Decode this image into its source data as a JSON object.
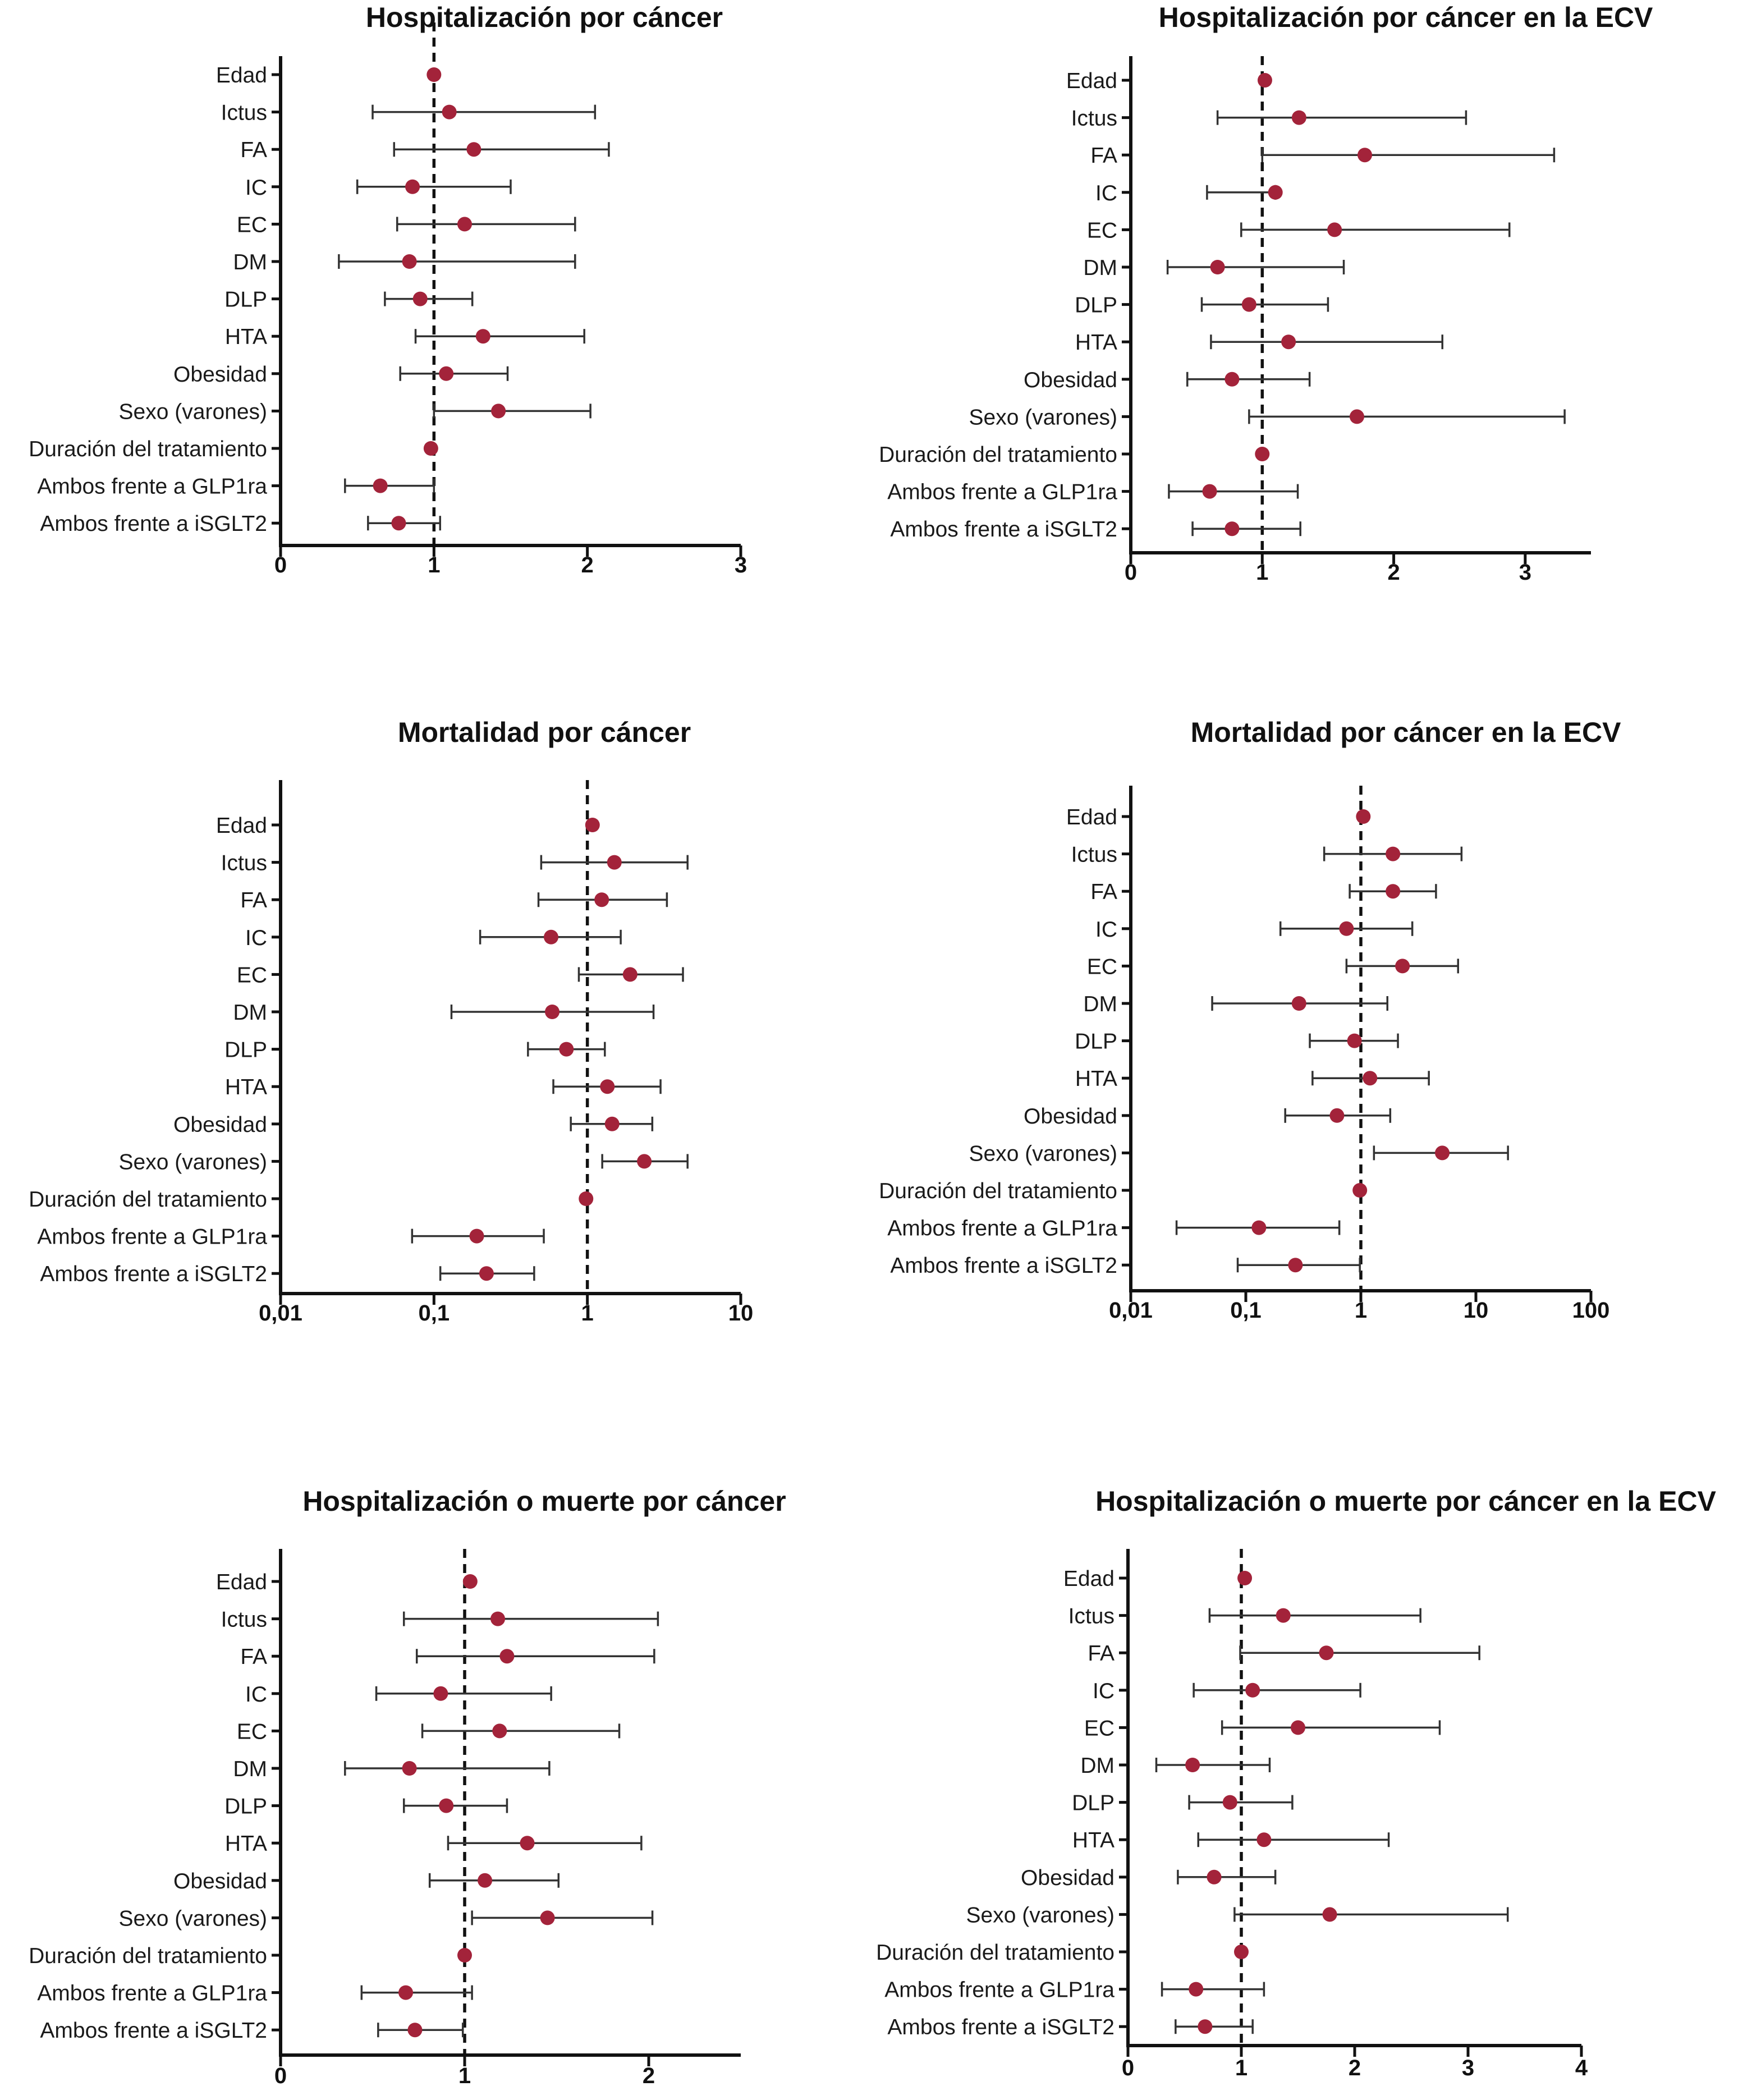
{
  "colors": {
    "point": "#a3233a",
    "axis": "#111111",
    "ci": "#333333"
  },
  "row_labels": [
    "Edad",
    "Ictus",
    "FA",
    "IC",
    "EC",
    "DM",
    "DLP",
    "HTA",
    "Obesidad",
    "Sexo (varones)",
    "Duración del tratamiento",
    "Ambos frente a GLP1ra",
    "Ambos frente a iSGLT2"
  ],
  "chart_data": [
    {
      "type": "forest",
      "title": "Hospitalización por cáncer",
      "scale": "linear",
      "xlim": [
        0,
        3
      ],
      "ticks": [
        0,
        1,
        2,
        3
      ],
      "tick_labels": [
        "0",
        "1",
        "2",
        "3"
      ],
      "reference": 1,
      "rows": [
        {
          "label": "Edad",
          "est": 1.0,
          "lo": 1.0,
          "hi": 1.0
        },
        {
          "label": "Ictus",
          "est": 1.1,
          "lo": 0.6,
          "hi": 2.05
        },
        {
          "label": "FA",
          "est": 1.26,
          "lo": 0.74,
          "hi": 2.14
        },
        {
          "label": "IC",
          "est": 0.86,
          "lo": 0.5,
          "hi": 1.5
        },
        {
          "label": "EC",
          "est": 1.2,
          "lo": 0.76,
          "hi": 1.92
        },
        {
          "label": "DM",
          "est": 0.84,
          "lo": 0.38,
          "hi": 1.92
        },
        {
          "label": "DLP",
          "est": 0.91,
          "lo": 0.68,
          "hi": 1.25
        },
        {
          "label": "HTA",
          "est": 1.32,
          "lo": 0.88,
          "hi": 1.98
        },
        {
          "label": "Obesidad",
          "est": 1.08,
          "lo": 0.78,
          "hi": 1.48
        },
        {
          "label": "Sexo (varones)",
          "est": 1.42,
          "lo": 1.0,
          "hi": 2.02
        },
        {
          "label": "Duración del tratamiento",
          "est": 0.98,
          "lo": 0.98,
          "hi": 0.98
        },
        {
          "label": "Ambos frente a GLP1ra",
          "est": 0.65,
          "lo": 0.42,
          "hi": 1.0
        },
        {
          "label": "Ambos frente a iSGLT2",
          "est": 0.77,
          "lo": 0.57,
          "hi": 1.04
        }
      ]
    },
    {
      "type": "forest",
      "title": "Hospitalización por cáncer en la ECV",
      "scale": "linear",
      "xlim": [
        0,
        3.5
      ],
      "ticks": [
        0,
        1,
        2,
        3
      ],
      "tick_labels": [
        "0",
        "1",
        "2",
        "3"
      ],
      "reference": 1,
      "rows": [
        {
          "label": "Edad",
          "est": 1.02,
          "lo": 1.02,
          "hi": 1.02
        },
        {
          "label": "Ictus",
          "est": 1.28,
          "lo": 0.66,
          "hi": 2.55
        },
        {
          "label": "FA",
          "est": 1.78,
          "lo": 1.0,
          "hi": 3.22
        },
        {
          "label": "IC",
          "est": 1.1,
          "lo": 0.58,
          "hi": 1.1
        },
        {
          "label": "EC",
          "est": 1.55,
          "lo": 0.84,
          "hi": 2.88
        },
        {
          "label": "DM",
          "est": 0.66,
          "lo": 0.28,
          "hi": 1.62
        },
        {
          "label": "DLP",
          "est": 0.9,
          "lo": 0.54,
          "hi": 1.5
        },
        {
          "label": "HTA",
          "est": 1.2,
          "lo": 0.61,
          "hi": 2.37
        },
        {
          "label": "Obesidad",
          "est": 0.77,
          "lo": 0.43,
          "hi": 1.36
        },
        {
          "label": "Sexo (varones)",
          "est": 1.72,
          "lo": 0.9,
          "hi": 3.3
        },
        {
          "label": "Duración del tratamiento",
          "est": 1.0,
          "lo": 1.0,
          "hi": 1.0
        },
        {
          "label": "Ambos frente a GLP1ra",
          "est": 0.6,
          "lo": 0.29,
          "hi": 1.27
        },
        {
          "label": "Ambos frente a iSGLT2",
          "est": 0.77,
          "lo": 0.47,
          "hi": 1.29
        }
      ]
    },
    {
      "type": "forest",
      "title": "Mortalidad por cáncer",
      "scale": "log",
      "xlim": [
        0.01,
        10
      ],
      "ticks": [
        0.01,
        0.1,
        1,
        10
      ],
      "tick_labels": [
        "0,01",
        "0,1",
        "1",
        "10"
      ],
      "reference": 1,
      "rows": [
        {
          "label": "Edad",
          "est": 1.08,
          "lo": 1.08,
          "hi": 1.08
        },
        {
          "label": "Ictus",
          "est": 1.5,
          "lo": 0.5,
          "hi": 4.5
        },
        {
          "label": "FA",
          "est": 1.24,
          "lo": 0.48,
          "hi": 3.3
        },
        {
          "label": "IC",
          "est": 0.58,
          "lo": 0.2,
          "hi": 1.65
        },
        {
          "label": "EC",
          "est": 1.9,
          "lo": 0.88,
          "hi": 4.2
        },
        {
          "label": "DM",
          "est": 0.59,
          "lo": 0.13,
          "hi": 2.7
        },
        {
          "label": "DLP",
          "est": 0.73,
          "lo": 0.41,
          "hi": 1.3
        },
        {
          "label": "HTA",
          "est": 1.35,
          "lo": 0.6,
          "hi": 3.0
        },
        {
          "label": "Obesidad",
          "est": 1.45,
          "lo": 0.78,
          "hi": 2.65
        },
        {
          "label": "Sexo (varones)",
          "est": 2.35,
          "lo": 1.25,
          "hi": 4.5
        },
        {
          "label": "Duración del tratamiento",
          "est": 0.98,
          "lo": 0.98,
          "hi": 0.98
        },
        {
          "label": "Ambos frente a GLP1ra",
          "est": 0.19,
          "lo": 0.072,
          "hi": 0.52
        },
        {
          "label": "Ambos frente a iSGLT2",
          "est": 0.22,
          "lo": 0.11,
          "hi": 0.45
        }
      ]
    },
    {
      "type": "forest",
      "title": "Mortalidad por cáncer en la ECV",
      "scale": "log",
      "xlim": [
        0.01,
        100
      ],
      "ticks": [
        0.01,
        0.1,
        1,
        10,
        100
      ],
      "tick_labels": [
        "0,01",
        "0,1",
        "1",
        "10",
        "100"
      ],
      "reference": 1,
      "rows": [
        {
          "label": "Edad",
          "est": 1.05,
          "lo": 1.05,
          "hi": 1.05
        },
        {
          "label": "Ictus",
          "est": 1.9,
          "lo": 0.48,
          "hi": 7.5
        },
        {
          "label": "FA",
          "est": 1.9,
          "lo": 0.8,
          "hi": 4.5
        },
        {
          "label": "IC",
          "est": 0.75,
          "lo": 0.2,
          "hi": 2.8
        },
        {
          "label": "EC",
          "est": 2.3,
          "lo": 0.75,
          "hi": 7.0
        },
        {
          "label": "DM",
          "est": 0.29,
          "lo": 0.051,
          "hi": 1.7
        },
        {
          "label": "DLP",
          "est": 0.88,
          "lo": 0.36,
          "hi": 2.1
        },
        {
          "label": "HTA",
          "est": 1.2,
          "lo": 0.38,
          "hi": 3.9
        },
        {
          "label": "Obesidad",
          "est": 0.62,
          "lo": 0.22,
          "hi": 1.8
        },
        {
          "label": "Sexo (varones)",
          "est": 5.1,
          "lo": 1.3,
          "hi": 19.0
        },
        {
          "label": "Duración del tratamiento",
          "est": 0.98,
          "lo": 0.98,
          "hi": 0.98
        },
        {
          "label": "Ambos frente a GLP1ra",
          "est": 0.13,
          "lo": 0.025,
          "hi": 0.65
        },
        {
          "label": "Ambos frente a iSGLT2",
          "est": 0.27,
          "lo": 0.085,
          "hi": 0.98
        }
      ]
    },
    {
      "type": "forest",
      "title": "Hospitalización o muerte por cáncer",
      "scale": "linear",
      "xlim": [
        0,
        2.5
      ],
      "ticks": [
        0,
        1,
        2
      ],
      "tick_labels": [
        "0",
        "1",
        "2"
      ],
      "reference": 1,
      "rows": [
        {
          "label": "Edad",
          "est": 1.03,
          "lo": 1.03,
          "hi": 1.03
        },
        {
          "label": "Ictus",
          "est": 1.18,
          "lo": 0.67,
          "hi": 2.05
        },
        {
          "label": "FA",
          "est": 1.23,
          "lo": 0.74,
          "hi": 2.03
        },
        {
          "label": "IC",
          "est": 0.87,
          "lo": 0.52,
          "hi": 1.47
        },
        {
          "label": "EC",
          "est": 1.19,
          "lo": 0.77,
          "hi": 1.84
        },
        {
          "label": "DM",
          "est": 0.7,
          "lo": 0.35,
          "hi": 1.46
        },
        {
          "label": "DLP",
          "est": 0.9,
          "lo": 0.67,
          "hi": 1.23
        },
        {
          "label": "HTA",
          "est": 1.34,
          "lo": 0.91,
          "hi": 1.96
        },
        {
          "label": "Obesidad",
          "est": 1.11,
          "lo": 0.81,
          "hi": 1.51
        },
        {
          "label": "Sexo (varones)",
          "est": 1.45,
          "lo": 1.04,
          "hi": 2.02
        },
        {
          "label": "Duración del tratamiento",
          "est": 1.0,
          "lo": 1.0,
          "hi": 1.0
        },
        {
          "label": "Ambos frente a GLP1ra",
          "est": 0.68,
          "lo": 0.44,
          "hi": 1.04
        },
        {
          "label": "Ambos frente a iSGLT2",
          "est": 0.73,
          "lo": 0.53,
          "hi": 0.99
        }
      ]
    },
    {
      "type": "forest",
      "title": "Hospitalización o muerte por cáncer en la ECV",
      "scale": "linear",
      "xlim": [
        0,
        4
      ],
      "ticks": [
        0,
        1,
        2,
        3,
        4
      ],
      "tick_labels": [
        "0",
        "1",
        "2",
        "3",
        "4"
      ],
      "reference": 1,
      "rows": [
        {
          "label": "Edad",
          "est": 1.03,
          "lo": 1.03,
          "hi": 1.03
        },
        {
          "label": "Ictus",
          "est": 1.37,
          "lo": 0.72,
          "hi": 2.58
        },
        {
          "label": "FA",
          "est": 1.75,
          "lo": 0.99,
          "hi": 3.1
        },
        {
          "label": "IC",
          "est": 1.1,
          "lo": 0.58,
          "hi": 2.05
        },
        {
          "label": "EC",
          "est": 1.5,
          "lo": 0.83,
          "hi": 2.75
        },
        {
          "label": "DM",
          "est": 0.57,
          "lo": 0.25,
          "hi": 1.25
        },
        {
          "label": "DLP",
          "est": 0.9,
          "lo": 0.54,
          "hi": 1.45
        },
        {
          "label": "HTA",
          "est": 1.2,
          "lo": 0.62,
          "hi": 2.3
        },
        {
          "label": "Obesidad",
          "est": 0.76,
          "lo": 0.44,
          "hi": 1.3
        },
        {
          "label": "Sexo (varones)",
          "est": 1.78,
          "lo": 0.94,
          "hi": 3.35
        },
        {
          "label": "Duración del tratamiento",
          "est": 1.0,
          "lo": 1.0,
          "hi": 1.0
        },
        {
          "label": "Ambos frente a GLP1ra",
          "est": 0.6,
          "lo": 0.3,
          "hi": 1.2
        },
        {
          "label": "Ambos frente a iSGLT2",
          "est": 0.68,
          "lo": 0.42,
          "hi": 1.1
        }
      ]
    }
  ]
}
